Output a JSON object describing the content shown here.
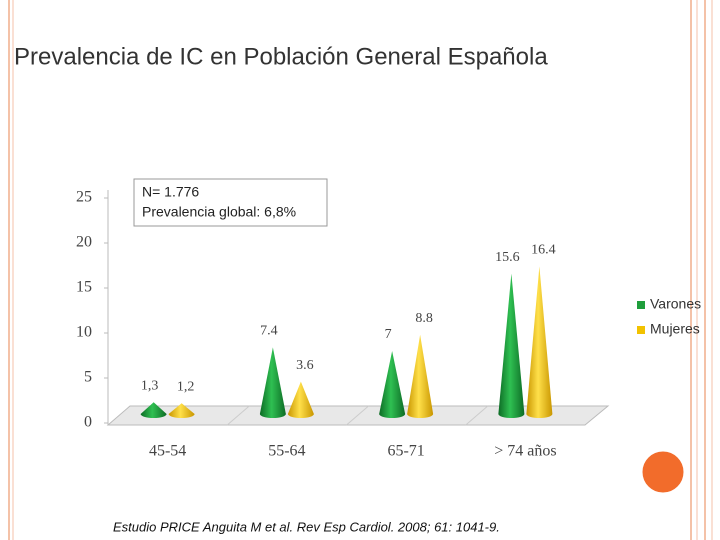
{
  "chart_data": {
    "type": "bar",
    "title": "Prevalencia de IC en Población General Española",
    "annotations": [
      "N= 1.776",
      "Prevalencia global: 6,8%"
    ],
    "source": "Estudio PRICE   Anguita M et al. Rev Esp Cardiol. 2008; 61: 1041-9.",
    "categories": [
      "45-54",
      "55-64",
      "65-71",
      "> 74 años"
    ],
    "series": [
      {
        "name": "Varones",
        "color": "#1f9e3c",
        "values": [
          1.3,
          7.4,
          7,
          15.6
        ],
        "value_labels": [
          "1,3",
          "7.4",
          "7",
          "15.6"
        ]
      },
      {
        "name": "Mujeres",
        "color": "#f2c200",
        "values": [
          1.2,
          3.6,
          8.8,
          16.4
        ],
        "value_labels": [
          "1,2",
          "3.6",
          "8.8",
          "16.4"
        ]
      }
    ],
    "ylim": [
      0,
      25
    ],
    "yticks": [
      0,
      5,
      10,
      15,
      20,
      25
    ],
    "legend": "right"
  }
}
